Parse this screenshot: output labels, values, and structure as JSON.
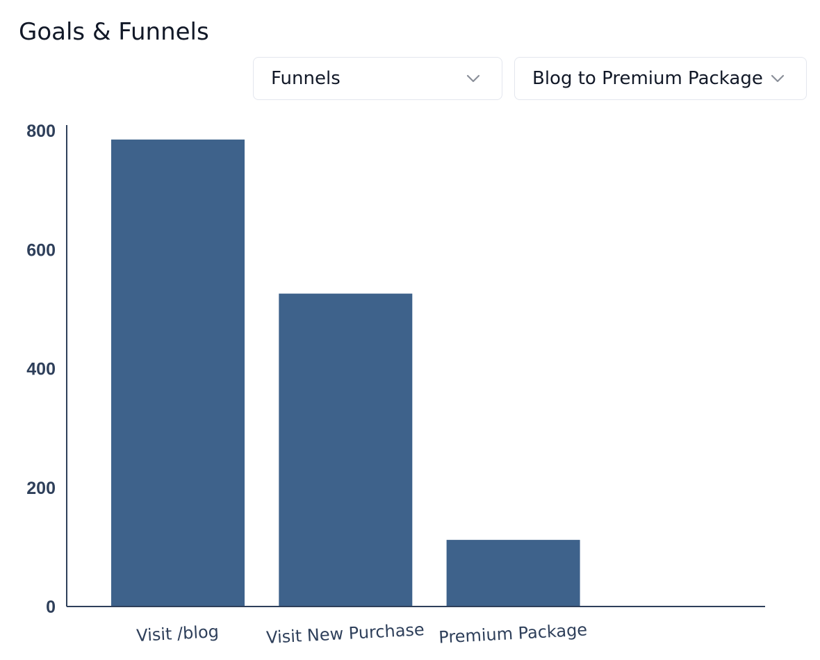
{
  "header": {
    "title": "Goals & Funnels"
  },
  "filters": {
    "metric_select": {
      "value": "Funnels",
      "icon": "chevron-down-icon"
    },
    "funnel_select": {
      "value": "Blog to Premium Package",
      "icon": "chevron-down-icon"
    }
  },
  "colors": {
    "bar": "#3e628b",
    "axis": "#2e3f5a",
    "text": "#2e3f5a"
  },
  "chart_data": {
    "type": "bar",
    "categories": [
      "Visit /blog",
      "Visit New Purchase",
      "Premium Package",
      ""
    ],
    "values": [
      785,
      526,
      112,
      0
    ],
    "title": "",
    "xlabel": "",
    "ylabel": "",
    "ylim": [
      0,
      800
    ],
    "yticks": [
      0,
      200,
      400,
      600,
      800
    ],
    "grid": false,
    "legend": "none"
  }
}
